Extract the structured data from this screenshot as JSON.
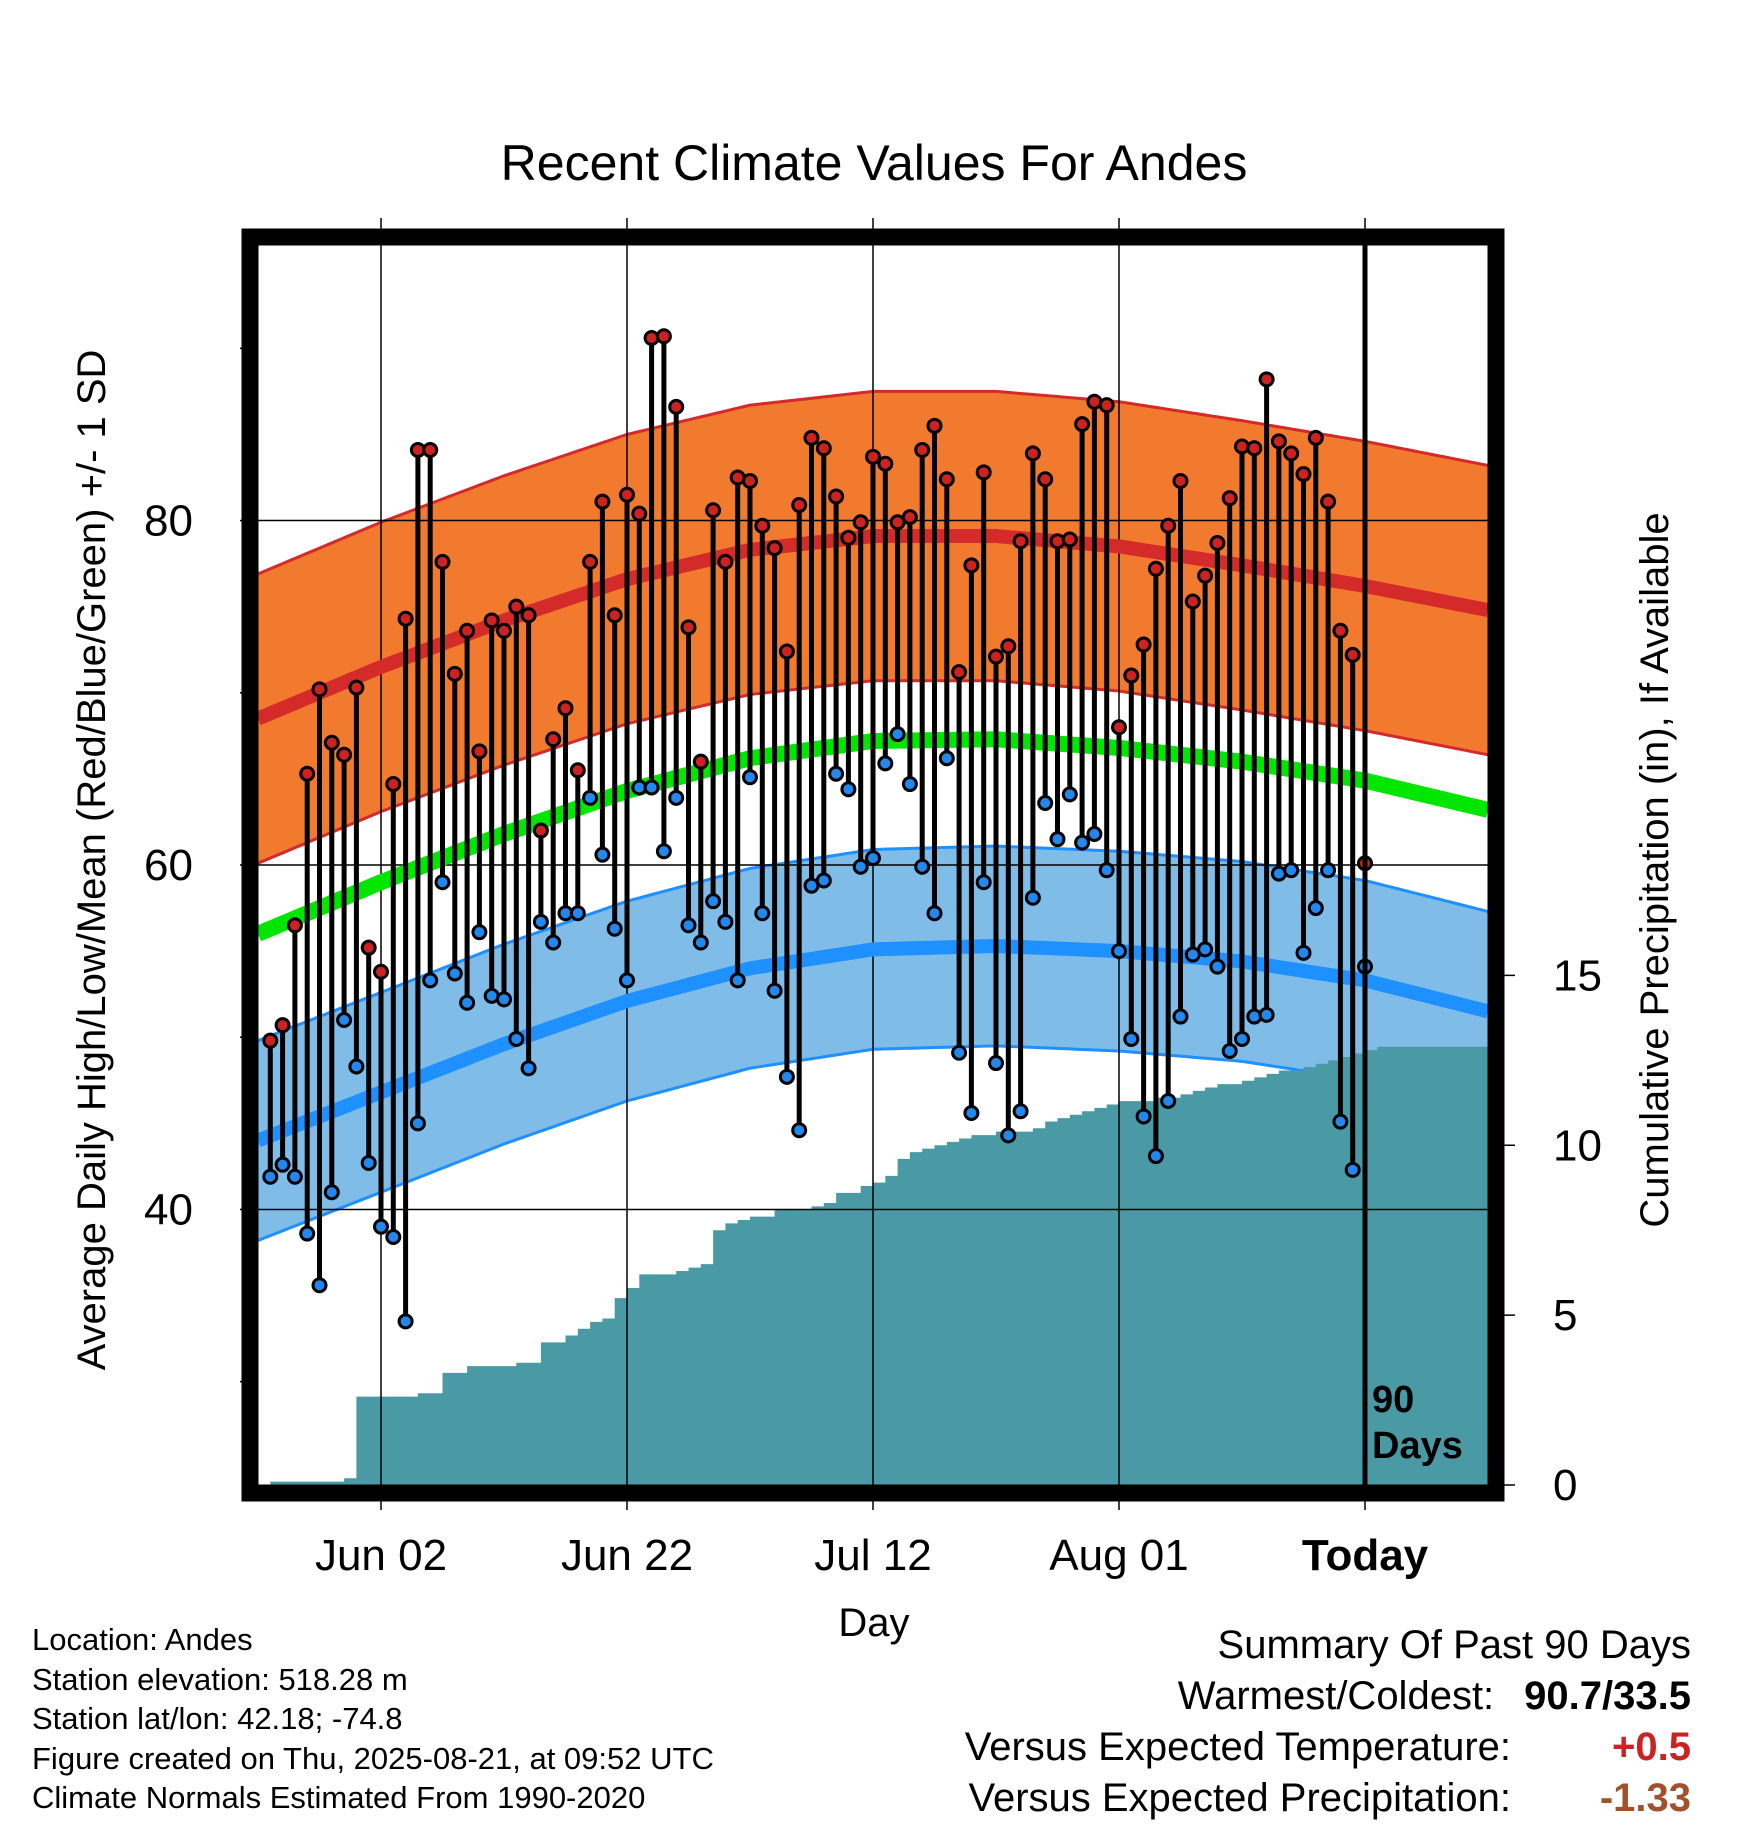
{
  "chart_data": {
    "type": "line",
    "title": "Recent Climate Values For Andes",
    "xlabel": "Day",
    "ylabel": "Average Daily High/Low/Mean (Red/Blue/Green) +/- 1 SD",
    "y2label": "Cumulative Precipitation (in), If Available",
    "ylim": [
      24,
      96
    ],
    "y_ticks": [
      "40",
      "60",
      "80"
    ],
    "y2lim": [
      0,
      36.5
    ],
    "y2_ticks": [
      "0",
      "5",
      "10",
      "15"
    ],
    "x_ticks": [
      {
        "label": "Jun 02",
        "day": 10
      },
      {
        "label": "Jun 22",
        "day": 30
      },
      {
        "label": "Jul 12",
        "day": 50
      },
      {
        "label": "Aug 01",
        "day": 70
      },
      {
        "label": "Today",
        "day": 90
      }
    ],
    "xlim": [
      0,
      100
    ],
    "today_marker": {
      "day": 90,
      "label_line1": "90",
      "label_line2": "Days"
    },
    "normals": {
      "days": [
        0,
        10,
        20,
        30,
        40,
        50,
        60,
        70,
        80,
        90,
        100
      ],
      "high_mean": [
        68.5,
        71.5,
        74.2,
        76.6,
        78.3,
        79.1,
        79.1,
        78.5,
        77.4,
        76.2,
        74.8
      ],
      "high_sd": 8.4,
      "low_mean": [
        44.0,
        46.8,
        49.6,
        52.1,
        54.0,
        55.1,
        55.3,
        55.0,
        54.4,
        53.3,
        51.5
      ],
      "low_sd": 5.8,
      "mean": [
        56.0,
        59.0,
        61.8,
        64.3,
        66.2,
        67.2,
        67.3,
        66.8,
        66.0,
        64.9,
        63.2
      ]
    },
    "series": [
      {
        "name": "High",
        "color": "#cc2222",
        "values": [
          49.8,
          50.7,
          56.5,
          65.3,
          70.2,
          67.1,
          66.4,
          70.3,
          55.2,
          53.8,
          64.7,
          74.3,
          84.1,
          84.1,
          77.6,
          71.1,
          73.6,
          66.6,
          74.2,
          73.6,
          75.0,
          74.5,
          62.0,
          67.3,
          69.1,
          65.5,
          77.6,
          81.1,
          74.5,
          81.5,
          80.4,
          90.6,
          90.7,
          86.6,
          73.8,
          66.0,
          80.6,
          77.6,
          82.5,
          82.3,
          79.7,
          78.4,
          72.4,
          80.9,
          84.8,
          84.2,
          81.4,
          79.0,
          79.9,
          83.7,
          83.3,
          79.9,
          80.2,
          84.1,
          85.5,
          82.4,
          71.2,
          77.4,
          82.8,
          72.1,
          72.7,
          78.8,
          83.9,
          82.4,
          78.8,
          78.9,
          85.6,
          86.9,
          86.7,
          68.0,
          71.0,
          72.8,
          77.2,
          79.7,
          82.3,
          75.3,
          76.8,
          78.7,
          81.3,
          84.3,
          84.2,
          88.2,
          84.6,
          83.9,
          82.7,
          84.8,
          81.1,
          73.6,
          72.2,
          60.1
        ],
        "note": "days 1 to 90"
      },
      {
        "name": "Low",
        "color": "#2288ee",
        "values": [
          41.9,
          42.6,
          41.9,
          38.6,
          35.6,
          41.0,
          51.0,
          48.3,
          42.7,
          39.0,
          38.4,
          33.5,
          45.0,
          53.3,
          59.0,
          53.7,
          52.0,
          56.1,
          52.4,
          52.2,
          49.9,
          48.2,
          56.7,
          55.5,
          57.2,
          57.2,
          63.9,
          60.6,
          56.3,
          53.3,
          64.5,
          64.5,
          60.8,
          63.9,
          56.5,
          55.5,
          57.9,
          56.7,
          53.3,
          65.1,
          57.2,
          52.7,
          47.7,
          44.6,
          58.8,
          59.1,
          65.3,
          64.4,
          59.9,
          60.4,
          65.9,
          67.6,
          64.7,
          59.9,
          57.2,
          66.2,
          49.1,
          45.6,
          59.0,
          48.5,
          44.3,
          45.7,
          58.1,
          63.6,
          61.5,
          64.1,
          61.3,
          61.8,
          59.7,
          55.0,
          49.9,
          45.4,
          43.1,
          46.3,
          51.2,
          54.8,
          55.1,
          54.1,
          49.2,
          49.9,
          51.2,
          51.3,
          59.5,
          59.7,
          54.9,
          57.5,
          59.7,
          45.1,
          42.3,
          54.1
        ],
        "note": "days 1 to 90"
      }
    ],
    "precipitation": {
      "name": "Cumulative Precipitation",
      "color": "#4a9aa5",
      "days": [
        1,
        7,
        8,
        13,
        15,
        17,
        21,
        23,
        25,
        26,
        27,
        28,
        29,
        30,
        31,
        34,
        35,
        36,
        37,
        38,
        39,
        40,
        42,
        45,
        46,
        47,
        49,
        50,
        51,
        52,
        53,
        54,
        55,
        56,
        57,
        58,
        60,
        63,
        64,
        65,
        66,
        67,
        68,
        69,
        70,
        73,
        75,
        76,
        77,
        78,
        80,
        81,
        82,
        83,
        85,
        86,
        87,
        88,
        89,
        90,
        91,
        100
      ],
      "values": [
        0.1,
        0.2,
        2.6,
        2.7,
        3.3,
        3.5,
        3.6,
        4.2,
        4.4,
        4.6,
        4.8,
        4.9,
        5.5,
        5.8,
        6.2,
        6.3,
        6.4,
        6.5,
        7.5,
        7.7,
        7.8,
        7.9,
        8.1,
        8.2,
        8.3,
        8.6,
        8.8,
        8.9,
        9.1,
        9.6,
        9.8,
        9.9,
        10.0,
        10.1,
        10.2,
        10.3,
        10.4,
        10.5,
        10.7,
        10.8,
        10.9,
        11.0,
        11.1,
        11.2,
        11.3,
        11.4,
        11.5,
        11.6,
        11.7,
        11.8,
        11.9,
        12.0,
        12.1,
        12.2,
        12.3,
        12.4,
        12.5,
        12.6,
        12.7,
        12.8,
        12.9,
        13.0
      ],
      "note": "approximate cumulative totals"
    }
  },
  "footer": {
    "location": "Location: Andes",
    "elevation": "Station elevation: 518.28 m",
    "latlon": "Station lat/lon: 42.18; -74.8",
    "created": "Figure created on Thu, 2025-08-21, at 09:52 UTC",
    "normals": "Climate Normals Estimated From 1990-2020"
  },
  "summary": {
    "heading": "Summary Of Past 90 Days",
    "warm_label": "Warmest/Coldest:",
    "warm_value": "90.7/33.5",
    "temp_label": "Versus Expected Temperature:",
    "temp_value": "+0.5",
    "temp_color": "#cc2222",
    "precip_label": "Versus Expected Precipitation:",
    "precip_value": "-1.33",
    "precip_color": "#a0522d"
  }
}
